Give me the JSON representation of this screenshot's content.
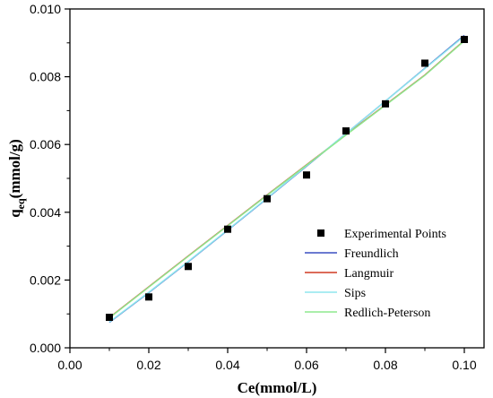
{
  "chart_data": {
    "type": "scatter",
    "xlabel": "Ce(mmol/L)",
    "ylabel_main": "q",
    "ylabel_sub": "eq",
    "ylabel_rest": "(mmol/g)",
    "xlim": [
      0.0,
      0.105
    ],
    "ylim": [
      0.0,
      0.01
    ],
    "grid": false,
    "legend_position": "bottom-right",
    "x_ticks": [
      0.0,
      0.02,
      0.04,
      0.06,
      0.08,
      0.1
    ],
    "x_tick_labels": [
      "0.00",
      "0.02",
      "0.04",
      "0.06",
      "0.08",
      "0.10"
    ],
    "y_ticks": [
      0.0,
      0.002,
      0.004,
      0.006,
      0.008,
      0.01
    ],
    "y_tick_labels": [
      "0.000",
      "0.002",
      "0.004",
      "0.006",
      "0.008",
      "0.010"
    ],
    "series": [
      {
        "name": "Experimental Points",
        "kind": "points",
        "color": "#000000",
        "x": [
          0.01,
          0.02,
          0.03,
          0.04,
          0.05,
          0.06,
          0.07,
          0.08,
          0.09,
          0.1
        ],
        "y": [
          0.0009,
          0.0015,
          0.0024,
          0.0035,
          0.0044,
          0.0051,
          0.0064,
          0.0072,
          0.0084,
          0.0091
        ]
      },
      {
        "name": "Freundlich",
        "kind": "line",
        "color": "#3a4fc2",
        "x": [
          0.01,
          0.02,
          0.03,
          0.04,
          0.05,
          0.06,
          0.07,
          0.08,
          0.09,
          0.1
        ],
        "y": [
          0.00075,
          0.00163,
          0.00254,
          0.00347,
          0.00441,
          0.00536,
          0.00632,
          0.00728,
          0.00825,
          0.00922
        ]
      },
      {
        "name": "Langmuir",
        "kind": "line",
        "color": "#d03a22",
        "x": [
          0.01,
          0.02,
          0.03,
          0.04,
          0.05,
          0.06,
          0.07,
          0.08,
          0.09,
          0.1
        ],
        "y": [
          0.00089,
          0.0018,
          0.00271,
          0.00361,
          0.00451,
          0.0054,
          0.00629,
          0.00717,
          0.00805,
          0.00907
        ]
      },
      {
        "name": "Sips",
        "kind": "line",
        "color": "#8fe6ee",
        "x": [
          0.01,
          0.02,
          0.03,
          0.04,
          0.05,
          0.06,
          0.07,
          0.08,
          0.09,
          0.1
        ],
        "y": [
          0.00076,
          0.00164,
          0.00255,
          0.00348,
          0.00442,
          0.00537,
          0.00632,
          0.00728,
          0.00824,
          0.0092
        ]
      },
      {
        "name": "Redlich-Peterson",
        "kind": "line",
        "color": "#8ee88e",
        "x": [
          0.01,
          0.02,
          0.03,
          0.04,
          0.05,
          0.06,
          0.07,
          0.08,
          0.09,
          0.1
        ],
        "y": [
          0.00088,
          0.00179,
          0.0027,
          0.0036,
          0.0045,
          0.00539,
          0.00628,
          0.00716,
          0.00804,
          0.00906
        ]
      }
    ]
  }
}
